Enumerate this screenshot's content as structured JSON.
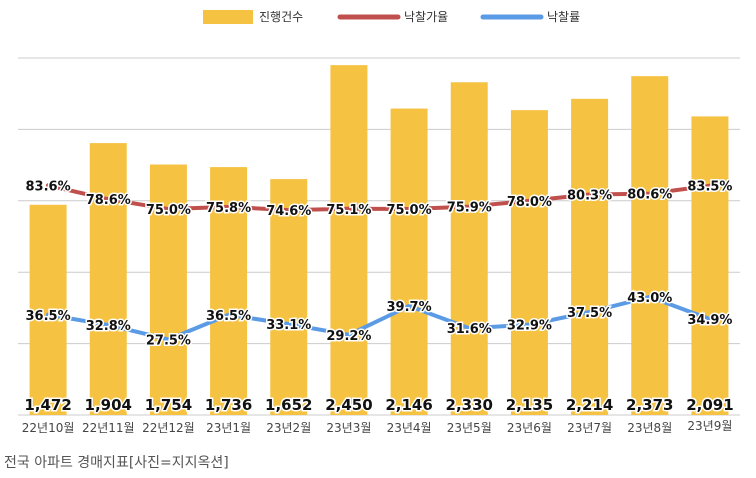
{
  "chart_data": {
    "type": "bar",
    "categories": [
      "22년10월",
      "22년11월",
      "22년12월",
      "23년1월",
      "23년2월",
      "23년3월",
      "23년4월",
      "23년5월",
      "23년6월",
      "23년7월",
      "23년8월",
      "23년9월"
    ],
    "series": [
      {
        "name": "진행건수",
        "type": "bar",
        "axis": "left",
        "color": "#F5C242",
        "values": [
          1472,
          1904,
          1754,
          1736,
          1652,
          2450,
          2146,
          2330,
          2135,
          2214,
          2373,
          2091
        ],
        "labels": [
          "1,472",
          "1,904",
          "1,754",
          "1,736",
          "1,652",
          "2,450",
          "2,146",
          "2,330",
          "2,135",
          "2,214",
          "2,373",
          "2,091"
        ]
      },
      {
        "name": "낙찰가율",
        "type": "line",
        "axis": "right",
        "color": "#C0504D",
        "values": [
          83.6,
          78.6,
          75.0,
          75.8,
          74.6,
          75.1,
          75.0,
          75.9,
          78.0,
          80.3,
          80.6,
          83.5
        ],
        "labels": [
          "83.6%",
          "78.6%",
          "75.0%",
          "75.8%",
          "74.6%",
          "75.1%",
          "75.0%",
          "75.9%",
          "78.0%",
          "80.3%",
          "80.6%",
          "83.5%"
        ]
      },
      {
        "name": "낙찰률",
        "type": "line",
        "axis": "right",
        "color": "#5B9BE6",
        "values": [
          36.5,
          32.8,
          27.5,
          36.5,
          33.1,
          29.2,
          39.7,
          31.6,
          32.9,
          37.5,
          43.0,
          34.9
        ],
        "labels": [
          "36.5%",
          "32.8%",
          "27.5%",
          "36.5%",
          "33.1%",
          "29.2%",
          "39.7%",
          "31.6%",
          "32.9%",
          "37.5%",
          "43.0%",
          "34.9%"
        ]
      }
    ],
    "y_left_range": [
      0,
      2500
    ],
    "y_right_range": [
      0,
      130
    ],
    "grid": true,
    "legend_position": "top-center",
    "colors": {
      "bar": "#F5C242",
      "line1": "#C0504D",
      "line2": "#5B9BE6",
      "grid": "#cccccc"
    }
  },
  "caption": "전국 아파트 경매지표[사진=지지옥션]"
}
